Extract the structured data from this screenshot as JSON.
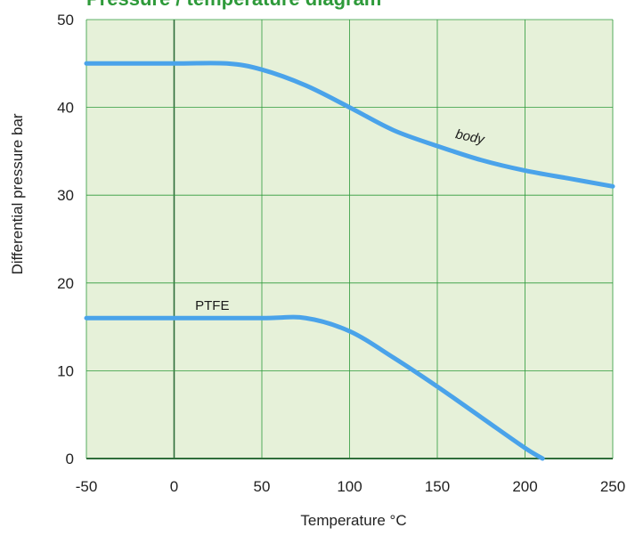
{
  "chart_data": {
    "type": "line",
    "title": "Pressure / temperature diagram",
    "xlabel": "Temperature °C",
    "ylabel": "Differential pressure bar",
    "xlim": [
      -50,
      250
    ],
    "ylim": [
      0,
      50
    ],
    "x_ticks": [
      -50,
      0,
      50,
      100,
      150,
      200,
      250
    ],
    "y_ticks": [
      0,
      10,
      20,
      30,
      40,
      50
    ],
    "x_tick_labels": [
      "-50",
      "0",
      "50",
      "100",
      "150",
      "200",
      "250"
    ],
    "y_tick_labels": [
      "0",
      "10",
      "20",
      "30",
      "40",
      "50"
    ],
    "grid": true,
    "series": [
      {
        "name": "body",
        "color": "#4aa3ea",
        "label_at": [
          160,
          35.6
        ],
        "points": [
          [
            -50,
            45
          ],
          [
            0,
            45
          ],
          [
            30,
            45
          ],
          [
            50,
            44.3
          ],
          [
            75,
            42.5
          ],
          [
            100,
            40
          ],
          [
            125,
            37.4
          ],
          [
            150,
            35.6
          ],
          [
            175,
            34
          ],
          [
            200,
            32.8
          ],
          [
            225,
            31.9
          ],
          [
            250,
            31
          ]
        ]
      },
      {
        "name": "PTFE",
        "color": "#4aa3ea",
        "label_at": [
          12,
          16
        ],
        "points": [
          [
            -50,
            16
          ],
          [
            0,
            16
          ],
          [
            50,
            16
          ],
          [
            75,
            16
          ],
          [
            100,
            14.5
          ],
          [
            125,
            11.5
          ],
          [
            150,
            8.2
          ],
          [
            175,
            4.7
          ],
          [
            200,
            1.2
          ],
          [
            210,
            0
          ]
        ]
      }
    ],
    "colors": {
      "plot_background": "#e6f1d9",
      "grid": "#2e9a3a",
      "zero_line": "#2f6e3a",
      "line": "#4aa3ea"
    }
  }
}
